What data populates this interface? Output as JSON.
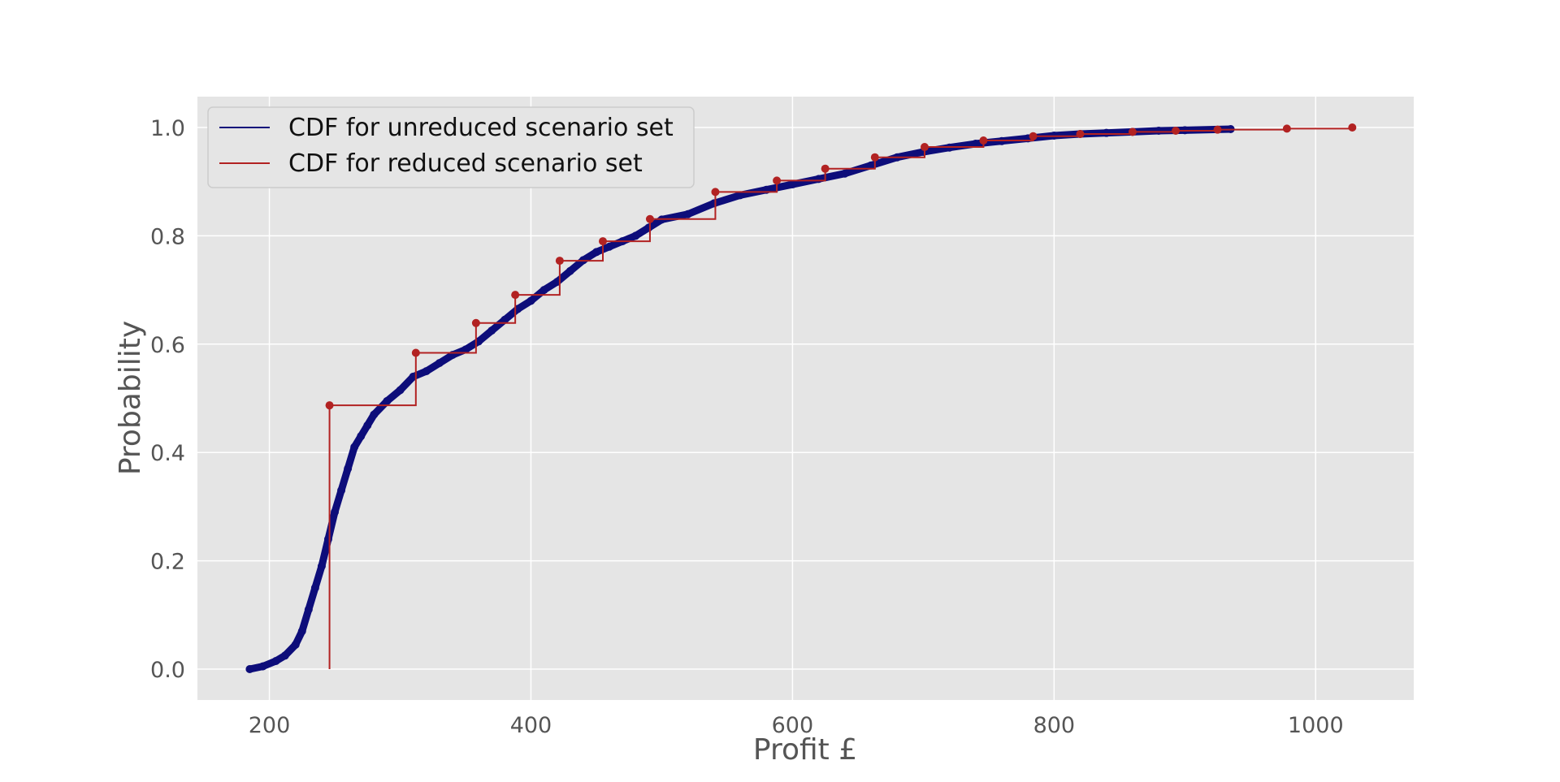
{
  "chart_data": {
    "type": "line",
    "title": "",
    "xlabel": "Profit £",
    "ylabel": "Probability",
    "xlim": [
      145,
      1075
    ],
    "ylim": [
      -0.057,
      1.057
    ],
    "xticks": [
      200,
      400,
      600,
      800,
      1000
    ],
    "xtick_labels": [
      "200",
      "400",
      "600",
      "800",
      "1000"
    ],
    "yticks": [
      0.0,
      0.2,
      0.4,
      0.6,
      0.8,
      1.0
    ],
    "ytick_labels": [
      "0.0",
      "0.2",
      "0.4",
      "0.6",
      "0.8",
      "1.0"
    ],
    "grid": true,
    "legend_position": "upper-left",
    "colors": {
      "unreduced": "#0d0d7a",
      "reduced": "#b22222",
      "plot_background": "#e5e5e5",
      "grid": "#ffffff"
    },
    "series": [
      {
        "name": "CDF for unreduced scenario set",
        "style": "line-with-markers",
        "x": [
          185,
          195,
          205,
          212,
          220,
          225,
          230,
          235,
          240,
          245,
          250,
          255,
          260,
          265,
          270,
          275,
          280,
          290,
          300,
          310,
          320,
          330,
          340,
          350,
          360,
          370,
          380,
          390,
          400,
          410,
          420,
          430,
          440,
          450,
          460,
          470,
          480,
          490,
          500,
          520,
          540,
          560,
          580,
          600,
          620,
          640,
          660,
          680,
          700,
          720,
          740,
          760,
          780,
          800,
          820,
          840,
          860,
          880,
          900,
          935
        ],
        "y": [
          0.0,
          0.005,
          0.015,
          0.025,
          0.045,
          0.07,
          0.11,
          0.15,
          0.19,
          0.24,
          0.29,
          0.33,
          0.37,
          0.41,
          0.43,
          0.45,
          0.47,
          0.495,
          0.515,
          0.54,
          0.55,
          0.565,
          0.58,
          0.59,
          0.605,
          0.625,
          0.645,
          0.665,
          0.68,
          0.7,
          0.715,
          0.735,
          0.755,
          0.77,
          0.78,
          0.79,
          0.8,
          0.815,
          0.83,
          0.84,
          0.86,
          0.875,
          0.885,
          0.895,
          0.905,
          0.915,
          0.93,
          0.945,
          0.955,
          0.963,
          0.97,
          0.975,
          0.98,
          0.985,
          0.988,
          0.99,
          0.992,
          0.994,
          0.995,
          0.997
        ]
      },
      {
        "name": "CDF for reduced scenario set",
        "style": "step-with-markers",
        "x": [
          246,
          312,
          358,
          388,
          422,
          455,
          491,
          541,
          588,
          625,
          663,
          701,
          746,
          784,
          820,
          860,
          893,
          925,
          978,
          1028
        ],
        "y": [
          0.487,
          0.584,
          0.639,
          0.691,
          0.754,
          0.79,
          0.831,
          0.881,
          0.902,
          0.924,
          0.945,
          0.964,
          0.976,
          0.984,
          0.988,
          0.992,
          0.994,
          0.996,
          0.998,
          1.0
        ]
      }
    ]
  }
}
